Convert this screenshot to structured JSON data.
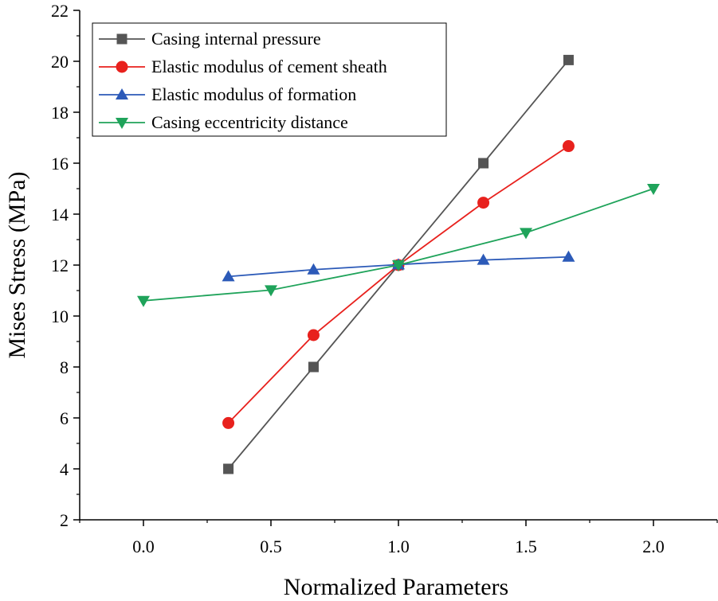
{
  "chart_data": {
    "type": "line",
    "title": "",
    "xlabel": "Normalized Parameters",
    "ylabel": "Mises Stress (MPa)",
    "xlim": [
      -0.25,
      2.25
    ],
    "ylim": [
      2,
      22
    ],
    "xticks": [
      0.0,
      0.5,
      1.0,
      1.5,
      2.0
    ],
    "xtick_labels": [
      "0.0",
      "0.5",
      "1.0",
      "1.5",
      "2.0"
    ],
    "yticks": [
      2,
      4,
      6,
      8,
      10,
      12,
      14,
      16,
      18,
      20,
      22
    ],
    "ytick_labels": [
      "2",
      "4",
      "6",
      "8",
      "10",
      "12",
      "14",
      "16",
      "18",
      "20",
      "22"
    ],
    "grid": false,
    "legend_position": "top-left",
    "series": [
      {
        "name": "Casing internal pressure",
        "color": "#555555",
        "marker": "square",
        "x": [
          0.333,
          0.667,
          1.0,
          1.333,
          1.667
        ],
        "y": [
          4.0,
          8.0,
          12.0,
          16.0,
          20.05
        ]
      },
      {
        "name": "Elastic modulus of cement sheath",
        "color": "#e8211d",
        "marker": "circle",
        "x": [
          0.333,
          0.667,
          1.0,
          1.333,
          1.667
        ],
        "y": [
          5.8,
          9.25,
          12.0,
          14.45,
          16.67
        ]
      },
      {
        "name": "Elastic modulus of formation",
        "color": "#2c5ab8",
        "marker": "triangle-up",
        "x": [
          0.333,
          0.667,
          1.0,
          1.333,
          1.667
        ],
        "y": [
          11.55,
          11.82,
          12.02,
          12.2,
          12.32
        ]
      },
      {
        "name": "Casing eccentricity distance",
        "color": "#1fa35a",
        "marker": "triangle-down",
        "x": [
          0.0,
          0.5,
          1.0,
          1.5,
          2.0
        ],
        "y": [
          10.6,
          11.02,
          12.0,
          13.27,
          15.0
        ]
      }
    ]
  }
}
